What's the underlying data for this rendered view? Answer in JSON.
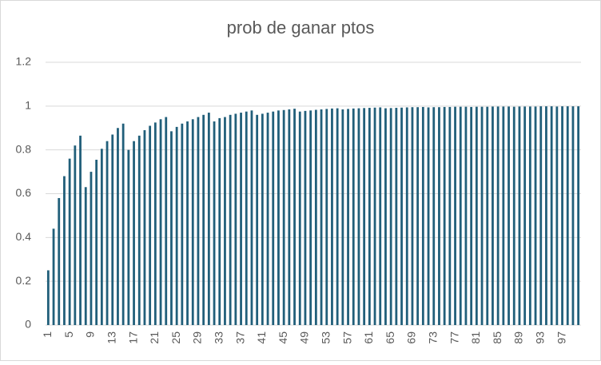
{
  "chart_data": {
    "type": "bar",
    "title": "prob de ganar ptos",
    "categories": [
      "1",
      null,
      null,
      null,
      "5",
      null,
      null,
      null,
      "9",
      null,
      null,
      null,
      "13",
      null,
      null,
      null,
      "17",
      null,
      null,
      null,
      "21",
      null,
      null,
      null,
      "25",
      null,
      null,
      null,
      "29",
      null,
      null,
      null,
      "33",
      null,
      null,
      null,
      "37",
      null,
      null,
      null,
      "41",
      null,
      null,
      null,
      "45",
      null,
      null,
      null,
      "49",
      null,
      null,
      null,
      "53",
      null,
      null,
      null,
      "57",
      null,
      null,
      null,
      "61",
      null,
      null,
      null,
      "65",
      null,
      null,
      null,
      "69",
      null,
      null,
      null,
      "73",
      null,
      null,
      null,
      "77",
      null,
      null,
      null,
      "81",
      null,
      null,
      null,
      "85",
      null,
      null,
      null,
      "89",
      null,
      null,
      null,
      "93",
      null,
      null,
      null,
      "97",
      null,
      null,
      null
    ],
    "values": [
      0.25,
      0.44,
      0.58,
      0.68,
      0.76,
      0.82,
      0.865,
      0.63,
      0.7,
      0.755,
      0.805,
      0.84,
      0.87,
      0.9,
      0.92,
      0.8,
      0.84,
      0.865,
      0.89,
      0.91,
      0.925,
      0.94,
      0.95,
      0.885,
      0.905,
      0.92,
      0.93,
      0.94,
      0.95,
      0.96,
      0.97,
      0.93,
      0.945,
      0.95,
      0.96,
      0.965,
      0.97,
      0.975,
      0.98,
      0.96,
      0.965,
      0.97,
      0.975,
      0.98,
      0.982,
      0.985,
      0.988,
      0.975,
      0.978,
      0.98,
      0.983,
      0.985,
      0.987,
      0.989,
      0.99,
      0.985,
      0.987,
      0.989,
      0.99,
      0.991,
      0.992,
      0.993,
      0.994,
      0.99,
      0.991,
      0.992,
      0.993,
      0.994,
      0.995,
      0.995,
      0.996,
      0.994,
      0.995,
      0.995,
      0.996,
      0.996,
      0.997,
      0.997,
      0.997,
      0.996,
      0.997,
      0.997,
      0.997,
      0.998,
      0.998,
      0.998,
      0.998,
      0.997,
      0.998,
      0.998,
      0.998,
      0.998,
      0.999,
      0.999,
      0.999,
      0.998,
      0.999,
      0.999,
      0.999,
      0.999
    ],
    "color": "#215f7a",
    "ylim": [
      0,
      1.2
    ],
    "yticks": [
      0,
      0.2,
      0.4,
      0.6,
      0.8,
      1,
      1.2
    ],
    "grid": true
  }
}
